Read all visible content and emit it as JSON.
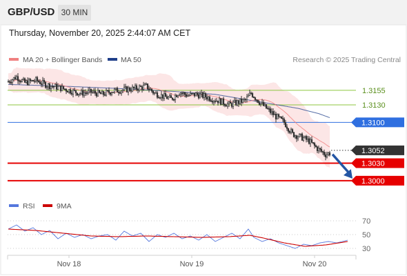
{
  "header": {
    "symbol": "GBP/USD",
    "timeframe": "30 MIN",
    "datetime": "Thursday, November 20, 2025 2:44:07 AM CET",
    "credit": "Research © 2025 Trading Central"
  },
  "colors": {
    "bollinger": "#f08080",
    "ma50": "#1f3f8a",
    "resistance_green": "#8cc63f",
    "pivot_blue": "#2f6fe0",
    "support_red": "#e60000",
    "last_price": "#333333",
    "arrow": "#2456a4",
    "rsi": "#5577dd",
    "rsi_ma": "#cc0000"
  },
  "chart_data": [
    {
      "type": "candlestick",
      "title": "",
      "legend": [
        {
          "name": "MA 20 + Bollinger Bands",
          "color": "#f08080"
        },
        {
          "name": "MA 50",
          "color": "#1f3f8a"
        }
      ],
      "legend_position": "top-left",
      "x_tick_labels": [
        "Nov 18",
        "Nov 19",
        "Nov 20"
      ],
      "ylim": [
        1.2975,
        1.3195
      ],
      "levels": [
        {
          "value": 1.3155,
          "label": "1.3155",
          "kind": "resistance"
        },
        {
          "value": 1.313,
          "label": "1.3130",
          "kind": "resistance"
        },
        {
          "value": 1.31,
          "label": "1.3100",
          "kind": "pivot"
        },
        {
          "value": 1.3052,
          "label": "1.3052",
          "kind": "last"
        },
        {
          "value": 1.303,
          "label": "1.3030",
          "kind": "support"
        },
        {
          "value": 1.3,
          "label": "1.3000",
          "kind": "support"
        }
      ],
      "price_path": [
        [
          0,
          1.317
        ],
        [
          6,
          1.3178
        ],
        [
          12,
          1.3168
        ],
        [
          20,
          1.3172
        ],
        [
          28,
          1.3164
        ],
        [
          36,
          1.316
        ],
        [
          44,
          1.3155
        ],
        [
          52,
          1.315
        ],
        [
          60,
          1.3152
        ],
        [
          68,
          1.3148
        ],
        [
          76,
          1.3154
        ],
        [
          84,
          1.3156
        ],
        [
          92,
          1.3158
        ],
        [
          100,
          1.3162
        ],
        [
          106,
          1.315
        ],
        [
          112,
          1.3145
        ],
        [
          118,
          1.314
        ],
        [
          124,
          1.3152
        ],
        [
          130,
          1.3146
        ],
        [
          136,
          1.3148
        ],
        [
          142,
          1.3145
        ],
        [
          148,
          1.314
        ],
        [
          154,
          1.3136
        ],
        [
          160,
          1.313
        ],
        [
          166,
          1.3134
        ],
        [
          172,
          1.3138
        ],
        [
          176,
          1.315
        ],
        [
          182,
          1.3135
        ],
        [
          188,
          1.3122
        ],
        [
          194,
          1.311
        ],
        [
          200,
          1.31
        ],
        [
          206,
          1.308
        ],
        [
          212,
          1.3075
        ],
        [
          218,
          1.3068
        ],
        [
          224,
          1.3055
        ],
        [
          230,
          1.3045
        ],
        [
          236,
          1.305
        ],
        [
          240,
          1.3055
        ],
        [
          246,
          1.3052
        ]
      ],
      "ma50_path": [
        [
          0,
          1.3165
        ],
        [
          40,
          1.3162
        ],
        [
          80,
          1.3158
        ],
        [
          120,
          1.3153
        ],
        [
          150,
          1.3148
        ],
        [
          170,
          1.314
        ],
        [
          190,
          1.3132
        ],
        [
          210,
          1.3124
        ],
        [
          225,
          1.3115
        ],
        [
          240,
          1.3102
        ],
        [
          246,
          1.31
        ]
      ]
    },
    {
      "type": "line",
      "title": "",
      "legend": [
        {
          "name": "RSI",
          "color": "#5577dd"
        },
        {
          "name": "9MA",
          "color": "#cc0000"
        }
      ],
      "ylim": [
        22,
        76
      ],
      "y_ticks": [
        70,
        50,
        30
      ],
      "y_tick_labels": [
        "70",
        "50",
        "30"
      ],
      "series": [
        {
          "name": "RSI",
          "values": [
            [
              0,
              58
            ],
            [
              6,
              64
            ],
            [
              12,
              55
            ],
            [
              18,
              60
            ],
            [
              24,
              50
            ],
            [
              30,
              56
            ],
            [
              36,
              44
            ],
            [
              42,
              52
            ],
            [
              48,
              46
            ],
            [
              54,
              50
            ],
            [
              60,
              44
            ],
            [
              66,
              48
            ],
            [
              72,
              50
            ],
            [
              78,
              42
            ],
            [
              84,
              55
            ],
            [
              90,
              48
            ],
            [
              96,
              52
            ],
            [
              102,
              40
            ],
            [
              108,
              50
            ],
            [
              114,
              46
            ],
            [
              120,
              52
            ],
            [
              126,
              44
            ],
            [
              132,
              48
            ],
            [
              138,
              42
            ],
            [
              144,
              50
            ],
            [
              150,
              40
            ],
            [
              156,
              46
            ],
            [
              162,
              52
            ],
            [
              168,
              44
            ],
            [
              174,
              58
            ],
            [
              178,
              46
            ],
            [
              184,
              40
            ],
            [
              190,
              44
            ],
            [
              196,
              38
            ],
            [
              202,
              34
            ],
            [
              208,
              30
            ],
            [
              214,
              36
            ],
            [
              220,
              34
            ],
            [
              226,
              38
            ],
            [
              232,
              40
            ],
            [
              238,
              38
            ],
            [
              244,
              41
            ],
            [
              246,
              42
            ]
          ]
        },
        {
          "name": "9MA",
          "values": [
            [
              0,
              58
            ],
            [
              20,
              56
            ],
            [
              40,
              52
            ],
            [
              60,
              48
            ],
            [
              80,
              47
            ],
            [
              100,
              48
            ],
            [
              120,
              47
            ],
            [
              140,
              46
            ],
            [
              160,
              47
            ],
            [
              175,
              49
            ],
            [
              185,
              45
            ],
            [
              200,
              38
            ],
            [
              215,
              33
            ],
            [
              230,
              35
            ],
            [
              246,
              40
            ]
          ]
        }
      ]
    }
  ]
}
